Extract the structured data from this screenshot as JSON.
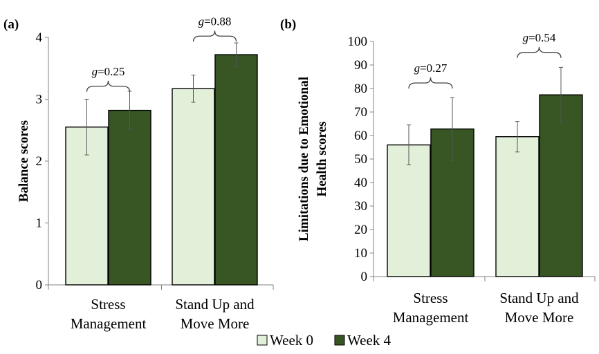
{
  "legend": {
    "items": [
      {
        "label": "Week 0",
        "color": "#e2efd9"
      },
      {
        "label": "Week 4",
        "color": "#375623"
      }
    ]
  },
  "colors": {
    "week0": "#e2efd9",
    "week4": "#375623",
    "stroke": "#000000",
    "axis": "#808080"
  },
  "chart_data": [
    {
      "panel_label": "(a)",
      "type": "bar",
      "title": "",
      "ylabel": "Balance scores",
      "xlabel": "",
      "ylim": [
        0,
        4
      ],
      "yticks": [
        0,
        1,
        2,
        3,
        4
      ],
      "categories": [
        "Stress Management",
        "Stand Up and Move More"
      ],
      "category_lines": [
        [
          "Stress",
          "Management"
        ],
        [
          "Stand Up and",
          "Move More"
        ]
      ],
      "series": [
        {
          "name": "Week 0",
          "values": [
            2.55,
            3.17
          ],
          "errors": [
            0.45,
            0.22
          ]
        },
        {
          "name": "Week 4",
          "values": [
            2.82,
            3.72
          ],
          "errors": [
            0.31,
            0.19
          ]
        }
      ],
      "annotations": [
        {
          "category": 0,
          "prefix": "g",
          "text": "=0.25",
          "y": 3.12
        },
        {
          "category": 1,
          "prefix": "g",
          "text": "=0.88",
          "y": 3.93
        }
      ]
    },
    {
      "panel_label": "(b)",
      "type": "bar",
      "title": "",
      "ylabel": "Limitations due to Emotional Health scores",
      "ylabel_lines": [
        "Limitations due to Emotional",
        "Health scores"
      ],
      "xlabel": "",
      "ylim": [
        0,
        100
      ],
      "yticks": [
        0,
        10,
        20,
        30,
        40,
        50,
        60,
        70,
        80,
        90,
        100
      ],
      "categories": [
        "Stress Management",
        "Stand Up and Move More"
      ],
      "category_lines": [
        [
          "Stress",
          "Management"
        ],
        [
          "Stand Up and",
          "Move More"
        ]
      ],
      "series": [
        {
          "name": "Week 0",
          "values": [
            56.0,
            59.5
          ],
          "errors": [
            8.5,
            6.5
          ]
        },
        {
          "name": "Week 4",
          "values": [
            62.8,
            77.3
          ],
          "errors": [
            13.3,
            11.7
          ]
        }
      ],
      "annotations": [
        {
          "category": 0,
          "prefix": "g",
          "text": "=0.27",
          "y": 80
        },
        {
          "category": 1,
          "prefix": "g",
          "text": "=0.54",
          "y": 93
        }
      ]
    }
  ]
}
